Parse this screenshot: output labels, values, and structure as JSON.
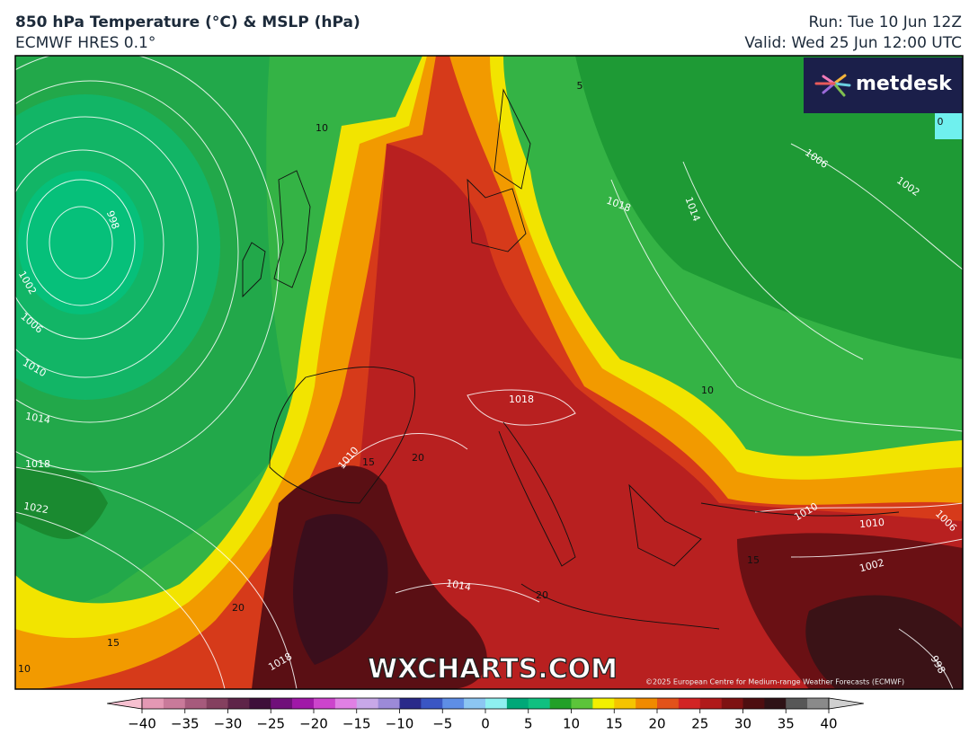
{
  "header": {
    "title": "850 hPa Temperature (°C) & MSLP (hPa)",
    "subtitle": "ECMWF HRES 0.1°",
    "run": "Run: Tue 10 Jun 12Z",
    "valid": "Valid: Wed 25 Jun 12:00 UTC"
  },
  "logo": "metdesk",
  "watermark": "WXCHARTS.COM",
  "copyright": "©2025 European Centre for Medium-range Weather Forecasts (ECMWF)",
  "map": {
    "isobar_labels": [
      998,
      1002,
      1006,
      1010,
      1014,
      1018,
      1022,
      1018,
      1010,
      1014,
      1018,
      1018,
      1014,
      1006,
      1002,
      1010,
      1010,
      1002,
      998,
      1006
    ],
    "temperature_labels": [
      10,
      20,
      15,
      20,
      20,
      15,
      10,
      10,
      15,
      5,
      0
    ]
  },
  "colorbar": {
    "range": [
      -42.5,
      42.5
    ],
    "colors": [
      "#f6c0d0",
      "#e498b4",
      "#c97a9a",
      "#a65a7c",
      "#84405f",
      "#5e2448",
      "#3e0f3a",
      "#70107a",
      "#a018a8",
      "#cc44cc",
      "#e080e4",
      "#c8a8e8",
      "#9c8ad8",
      "#2a2a8a",
      "#3a56c4",
      "#5e8ee6",
      "#8cc6f2",
      "#8ef0f0",
      "#00a878",
      "#10c080",
      "#22a028",
      "#5cc43a",
      "#f2f000",
      "#f5c400",
      "#f08a00",
      "#e2521a",
      "#d22424",
      "#b01a1a",
      "#7e1212",
      "#4e0e10",
      "#2e1216",
      "#575757",
      "#8a8a8a",
      "#cfcfcf"
    ],
    "ticks": [
      {
        "value": -40,
        "label": "−40"
      },
      {
        "value": -35,
        "label": "−35"
      },
      {
        "value": -30,
        "label": "−30"
      },
      {
        "value": -25,
        "label": "−25"
      },
      {
        "value": -20,
        "label": "−20"
      },
      {
        "value": -15,
        "label": "−15"
      },
      {
        "value": -10,
        "label": "−10"
      },
      {
        "value": -5,
        "label": "−5"
      },
      0,
      5,
      10,
      15,
      20,
      25,
      30,
      35,
      40
    ]
  }
}
